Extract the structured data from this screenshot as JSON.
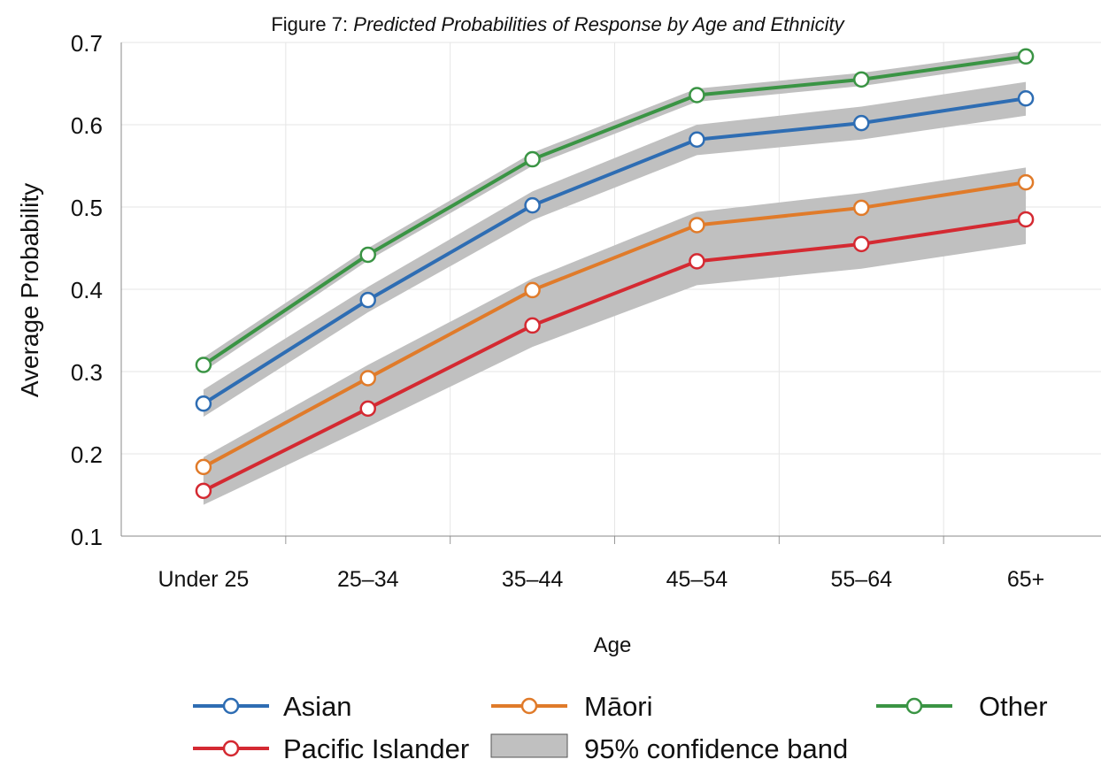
{
  "figure": {
    "label": "Figure 7:",
    "title": "Predicted Probabilities of Response by Age and Ethnicity"
  },
  "chart_data": {
    "type": "line",
    "title": "Figure 7: Predicted Probabilities of Response by Age and Ethnicity",
    "xlabel": "Age",
    "ylabel": "Average Probability",
    "categories": [
      "Under 25",
      "25–34",
      "35–44",
      "45–54",
      "55–64",
      "65+"
    ],
    "ylim": [
      0.1,
      0.7
    ],
    "yticks": [
      0.1,
      0.2,
      0.3,
      0.4,
      0.5,
      0.6,
      0.7
    ],
    "grid": true,
    "legend_position": "bottom",
    "series": [
      {
        "name": "Asian",
        "color": "#2e6db3",
        "values": [
          0.261,
          0.387,
          0.502,
          0.582,
          0.602,
          0.632
        ],
        "lower": [
          0.245,
          0.372,
          0.484,
          0.563,
          0.582,
          0.611
        ],
        "upper": [
          0.278,
          0.403,
          0.519,
          0.6,
          0.622,
          0.652
        ]
      },
      {
        "name": "Māori",
        "color": "#e07b2a",
        "values": [
          0.184,
          0.292,
          0.399,
          0.478,
          0.499,
          0.53
        ],
        "lower": [
          0.163,
          0.272,
          0.38,
          0.458,
          0.48,
          0.51
        ],
        "upper": [
          0.196,
          0.308,
          0.413,
          0.494,
          0.517,
          0.548
        ]
      },
      {
        "name": "Other",
        "color": "#3a9444",
        "values": [
          0.308,
          0.442,
          0.558,
          0.636,
          0.655,
          0.683
        ],
        "lower": [
          0.3,
          0.435,
          0.55,
          0.628,
          0.647,
          0.676
        ],
        "upper": [
          0.317,
          0.45,
          0.566,
          0.644,
          0.663,
          0.69
        ]
      },
      {
        "name": "Pacific Islander",
        "color": "#d42a32",
        "values": [
          0.155,
          0.255,
          0.356,
          0.434,
          0.455,
          0.485
        ],
        "lower": [
          0.138,
          0.233,
          0.33,
          0.405,
          0.425,
          0.455
        ],
        "upper": [
          0.173,
          0.278,
          0.381,
          0.462,
          0.482,
          0.513
        ]
      }
    ],
    "band": {
      "name": "95% confidence band",
      "color": "#c0c0c0"
    }
  }
}
